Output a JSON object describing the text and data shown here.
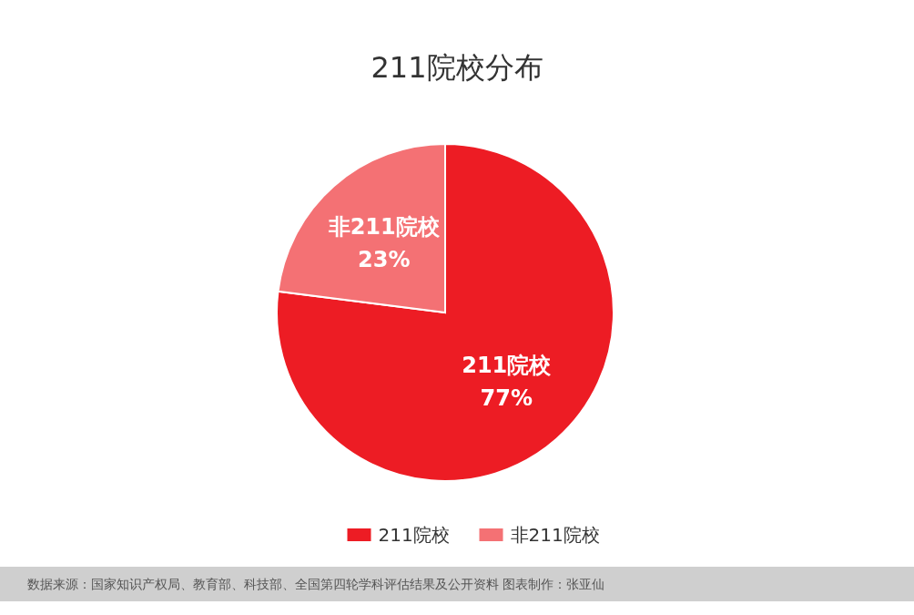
{
  "chart_data": {
    "type": "pie",
    "title": "211院校分布",
    "categories": [
      "211院校",
      "非211院校"
    ],
    "values": [
      77,
      23
    ],
    "value_labels": [
      "77%",
      "23%"
    ],
    "colors": [
      "#ed1c24",
      "#f47174"
    ],
    "legend": "bottom",
    "annotations": [
      "数据来源：国家知识产权局、教育部、科技部、全国第四轮学科评估结果及公开资料 图表制作：张亚仙"
    ]
  }
}
